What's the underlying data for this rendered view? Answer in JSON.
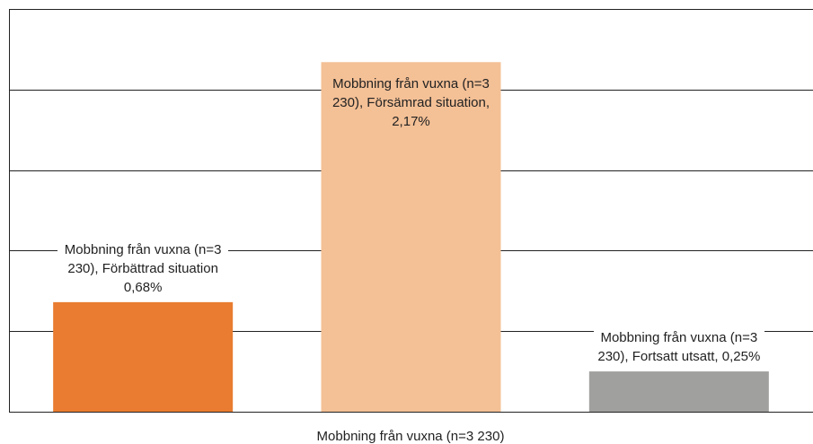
{
  "chart_data": {
    "type": "bar",
    "categories": [
      "Mobbning från vuxna (n=3 230)"
    ],
    "series": [
      {
        "color": "#e97c30",
        "values": [
          0.68
        ],
        "value_labels": [
          "Mobbning från vuxna (n=3 230), Förbättrad situation 0,68%"
        ]
      },
      {
        "color": "#f4c096",
        "values": [
          2.17
        ],
        "value_labels": [
          "Mobbning från vuxna (n=3 230), Försämrad situation, 2,17%"
        ]
      },
      {
        "color": "#a0a09e",
        "values": [
          0.25
        ],
        "value_labels": [
          "Mobbning från vuxna (n=3 230), Fortsatt utsatt, 0,25%"
        ]
      }
    ],
    "ylim": [
      0,
      2.5
    ],
    "yticks": [
      0,
      0.5,
      1,
      1.5,
      2,
      2.5
    ],
    "grid": true
  }
}
